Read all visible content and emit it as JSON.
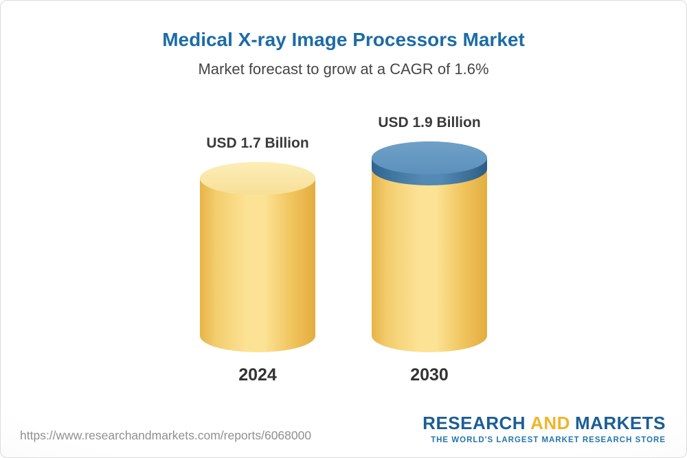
{
  "chart_data": {
    "type": "bar",
    "title": "Medical X-ray Image Processors Market",
    "subtitle": "Market forecast to grow at a CAGR of 1.6%",
    "cagr_percent": 1.6,
    "unit": "USD Billion",
    "categories": [
      "2024",
      "2030"
    ],
    "values": [
      1.7,
      1.9
    ],
    "bar_labels": [
      "USD 1.7 Billion",
      "USD 1.9 Billion"
    ],
    "growth_delta": 0.2,
    "grid": false,
    "legend_position": "none",
    "colors": {
      "bar_fill": "#f8d77e",
      "growth_cap_fill": "#4d83b0",
      "title_text": "#1c6ca6"
    }
  },
  "footer": {
    "source_url": "https://www.researchandmarkets.com/reports/6068000",
    "logo": {
      "word1": "RESEARCH",
      "word2": "AND",
      "word3": "MARKETS",
      "tagline": "THE WORLD'S LARGEST MARKET RESEARCH STORE"
    }
  }
}
